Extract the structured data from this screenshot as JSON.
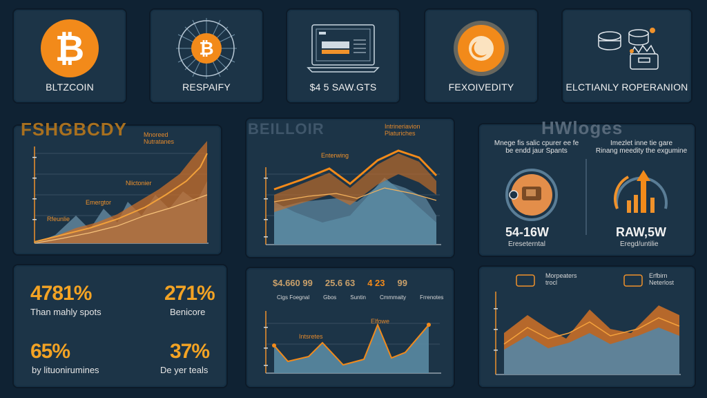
{
  "top_cards": [
    {
      "label": "BLTZCOIN",
      "icon": "bitcoin-coin-icon"
    },
    {
      "label": "RESPAIFY",
      "icon": "bitcoin-radiant-icon"
    },
    {
      "label": "$4 5 SAW.GTS",
      "icon": "laptop-chart-icon"
    },
    {
      "label": "FEXOIVEDITY",
      "icon": "glowing-coin-icon"
    },
    {
      "label": "ELCTIANLY ROPERANION",
      "icon": "coin-stack-icon"
    }
  ],
  "section_left": {
    "heading": "FSHGBCDY",
    "note": "Mnoreed\nNutratanes",
    "annotations": [
      "Nlictonier",
      "Emergtor",
      "Rfeunlie"
    ]
  },
  "section_middle": {
    "heading": "BEILLOIR",
    "note": "Intrineriavion\nPlaturiches",
    "annotation": "Enterwing"
  },
  "section_right": {
    "heading": "HWloges",
    "left_desc": "Mnege fis salic cpurer ee fe\nbe endd jaur Spants",
    "right_desc": "Imezlet inne tie gare\nRinang meedity the exgumine",
    "left_value": "54-16W",
    "left_sub": "Ereseterntal",
    "right_value": "RAW,5W",
    "right_sub": "Eregd/untilie"
  },
  "stats": [
    {
      "value": "4781%",
      "label": "Than mahly spots"
    },
    {
      "value": "271%",
      "label": "Benicore"
    },
    {
      "value": "65%",
      "label": "by lituonirumines"
    },
    {
      "value": "37%",
      "label": "De yer teals"
    }
  ],
  "bottom_middle": {
    "values": [
      "$4.660 99",
      "25.6 63",
      "4 23",
      "99"
    ],
    "labels": [
      "Cigs Foegnal",
      "Gbos",
      "Suntin",
      "Cmmmaity",
      "Frrenotes"
    ],
    "annotations": [
      "Elfowe",
      "Intsretes"
    ]
  },
  "bottom_right": {
    "left_note": "Morpeaters\ntrocl",
    "right_note": "Erfbirn\nNeterlost"
  },
  "colors": {
    "accent": "#f0922b",
    "panel": "#1c3447",
    "background": "#0f2233",
    "chart_fill": "#4c7087"
  }
}
